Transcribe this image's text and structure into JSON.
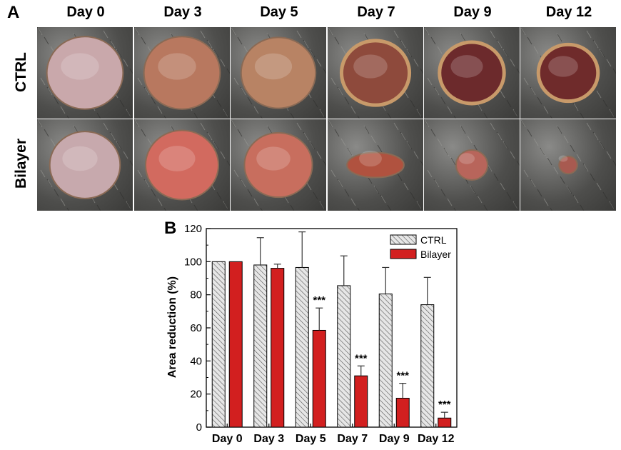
{
  "panel_a": {
    "letter": "A",
    "days": [
      "Day 0",
      "Day 3",
      "Day 5",
      "Day 7",
      "Day 9",
      "Day 12"
    ],
    "rows": [
      "CTRL",
      "Bilayer"
    ]
  },
  "panel_b": {
    "letter": "B"
  },
  "colors": {
    "ctrl_fill": "#e6e6e6",
    "ctrl_hatch": "#555555",
    "bilayer_fill": "#d21f1f",
    "axis": "#000000"
  },
  "chart_data": {
    "type": "bar",
    "categories": [
      "Day 0",
      "Day 3",
      "Day 5",
      "Day 7",
      "Day 9",
      "Day 12"
    ],
    "series": [
      {
        "name": "CTRL",
        "values": [
          100,
          98,
          96.5,
          85.5,
          80.5,
          74
        ],
        "errors": [
          0,
          16.5,
          21.5,
          18,
          16,
          16.5
        ]
      },
      {
        "name": "Bilayer",
        "values": [
          100,
          96,
          58.5,
          31,
          17.5,
          5.5
        ],
        "errors": [
          0,
          2.5,
          13.5,
          6,
          9,
          3.5
        ]
      }
    ],
    "annotations": [
      "",
      "",
      "***",
      "***",
      "***",
      "***"
    ],
    "ylabel": "Area reduction (%)",
    "xlabel": "",
    "ylim": [
      0,
      120
    ],
    "yticks": [
      0,
      20,
      40,
      60,
      80,
      100,
      120
    ],
    "legend_position": "top-right",
    "grid": false
  }
}
